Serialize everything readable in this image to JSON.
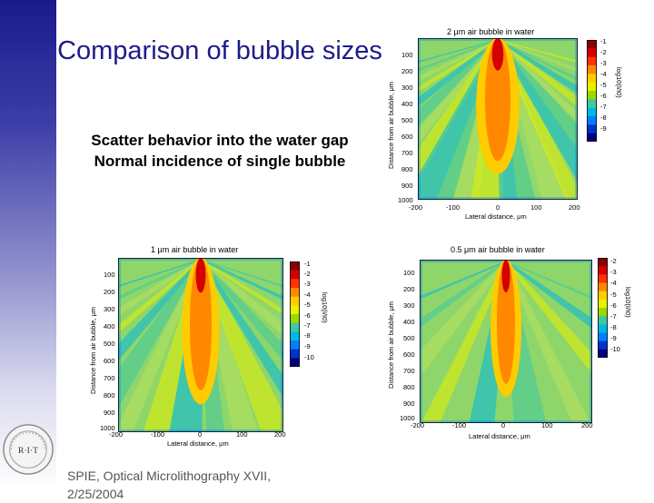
{
  "slide": {
    "title": "Comparison of bubble sizes",
    "bullets": [
      "Scatter behavior into the water gap",
      "Normal incidence of single bubble"
    ],
    "footer": [
      "SPIE, Optical Microlithography XVII,",
      "2/25/2004"
    ],
    "logo_text": "R·I·T"
  },
  "colors": {
    "title": "#1c1c8a",
    "sidebar_top": "#1a1a8c"
  },
  "plots": [
    {
      "id": "p2",
      "title": "2 μm air bubble in water",
      "xlabel": "Lateral distance, μm",
      "ylabel": "Distance from air bubble, μm",
      "colorbar_label": "log10(I/I0)",
      "x_ticks": [
        "-200",
        "-100",
        "0",
        "100",
        "200"
      ],
      "y_ticks": [
        "100",
        "200",
        "300",
        "400",
        "500",
        "600",
        "700",
        "800",
        "900",
        "1000"
      ],
      "cb_ticks": [
        "-1",
        "-2",
        "-3",
        "-4",
        "-5",
        "-6",
        "-7",
        "-8",
        "-9"
      ]
    },
    {
      "id": "p1",
      "title": "1 μm air bubble in water",
      "xlabel": "Lateral distance, μm",
      "ylabel": "Distance from air bubble, μm",
      "colorbar_label": "log10(I/I0)",
      "x_ticks": [
        "-200",
        "-100",
        "0",
        "100",
        "200"
      ],
      "y_ticks": [
        "100",
        "200",
        "300",
        "400",
        "500",
        "600",
        "700",
        "800",
        "900",
        "1000"
      ],
      "cb_ticks": [
        "-1",
        "-2",
        "-3",
        "-4",
        "-5",
        "-6",
        "-7",
        "-8",
        "-9",
        "-10"
      ]
    },
    {
      "id": "p05",
      "title": "0.5 μm air bubble in water",
      "xlabel": "Lateral distance, μm",
      "ylabel": "Distance from air bubble, μm",
      "colorbar_label": "log10(I/I0)",
      "x_ticks": [
        "-200",
        "-100",
        "0",
        "100",
        "200"
      ],
      "y_ticks": [
        "100",
        "200",
        "300",
        "400",
        "500",
        "600",
        "700",
        "800",
        "900",
        "1000"
      ],
      "cb_ticks": [
        "-2",
        "-3",
        "-4",
        "-5",
        "-6",
        "-7",
        "-8",
        "-9",
        "-10"
      ]
    }
  ]
}
